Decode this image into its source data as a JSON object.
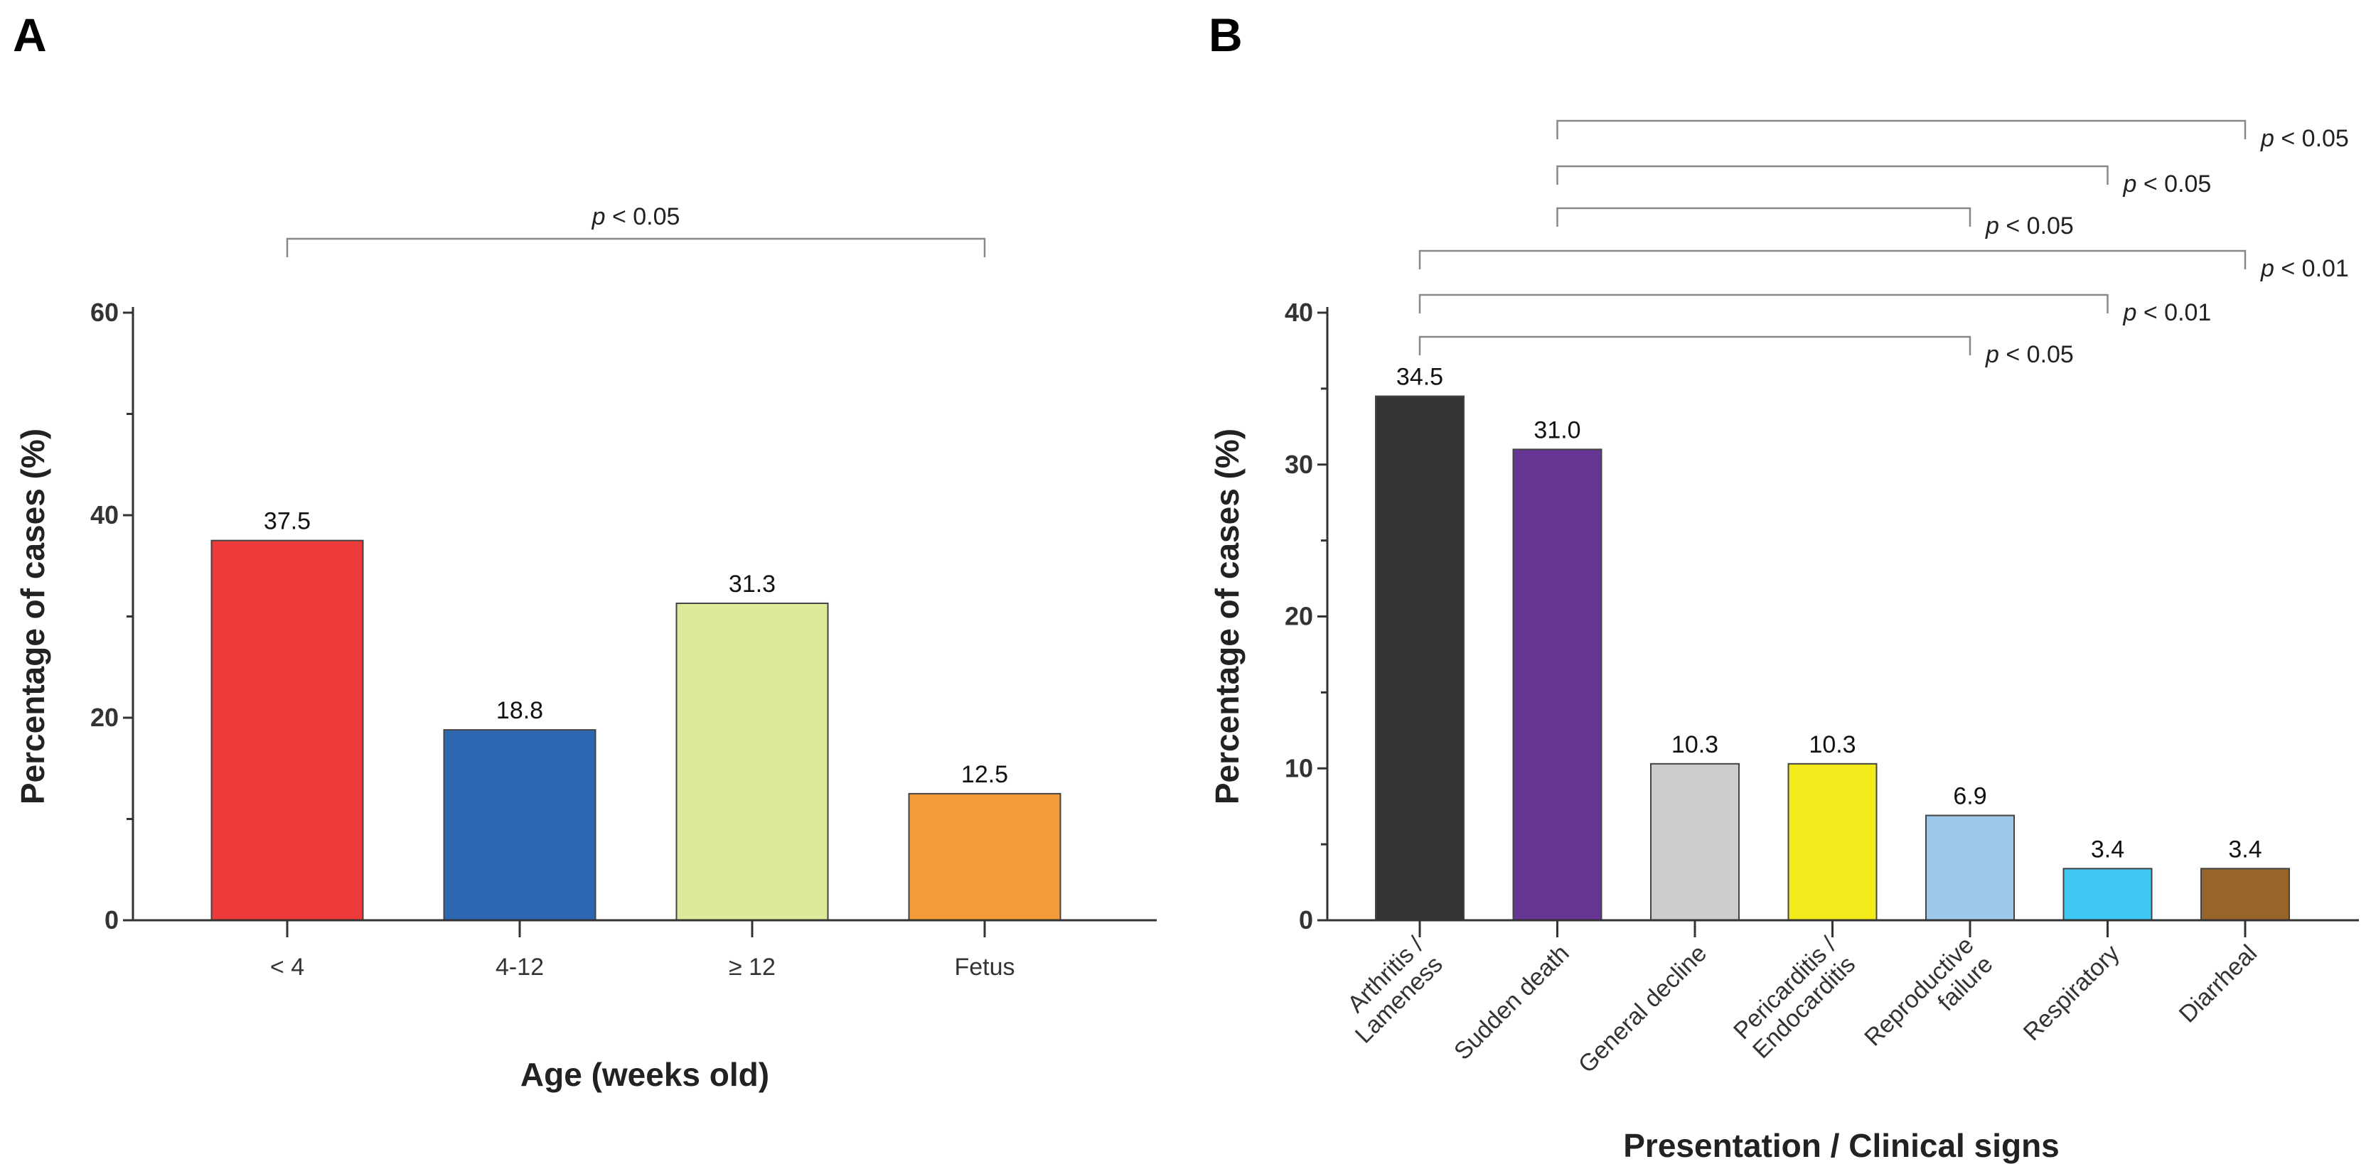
{
  "chart_data": [
    {
      "type": "bar",
      "panel": "A",
      "categories": [
        "< 4",
        "4-12",
        "≥ 12",
        "Fetus"
      ],
      "values": [
        37.5,
        18.8,
        31.3,
        12.5
      ],
      "value_labels": [
        "37.5",
        "18.8",
        "31.3",
        "12.5"
      ],
      "colors": [
        "#EE3A3B",
        "#2E67B1",
        "#DFE99B",
        "#F59A38"
      ],
      "xlabel": "Age (weeks old)",
      "ylabel": "Percentage of cases (%)",
      "ylim": [
        0,
        60
      ],
      "yticks": [
        0,
        20,
        40,
        60
      ],
      "grid": false,
      "significance": [
        {
          "from": 0,
          "to": 3,
          "label_p": "p",
          "label_rest": " < 0.05"
        }
      ]
    },
    {
      "type": "bar",
      "panel": "B",
      "categories": [
        [
          "Arthritis /",
          "Lameness"
        ],
        [
          "Sudden death"
        ],
        [
          "General decline"
        ],
        [
          "Pericarditis /",
          "Endocarditis"
        ],
        [
          "Reproductive",
          "failure"
        ],
        [
          "Respiratory"
        ],
        [
          "Diarrheal"
        ]
      ],
      "values": [
        34.5,
        31.0,
        10.3,
        10.3,
        6.9,
        3.4,
        3.4
      ],
      "value_labels": [
        "34.5",
        "31.0",
        "10.3",
        "10.3",
        "6.9",
        "3.4",
        "3.4"
      ],
      "colors": [
        "#333333",
        "#673594",
        "#CCCCCC",
        "#F2EA1B",
        "#9DC8EA",
        "#40C7F2",
        "#976529"
      ],
      "xlabel": "Presentation / Clinical signs",
      "ylabel": "Percentage of cases (%)",
      "ylim": [
        0,
        40
      ],
      "yticks": [
        0,
        10,
        20,
        30,
        40
      ],
      "grid": false,
      "significance": [
        {
          "from": 0,
          "to": 4,
          "label_p": "p",
          "label_rest": " < 0.05"
        },
        {
          "from": 0,
          "to": 5,
          "label_p": "p",
          "label_rest": " < 0.01"
        },
        {
          "from": 0,
          "to": 6,
          "label_p": "p",
          "label_rest": " < 0.01"
        },
        {
          "from": 1,
          "to": 4,
          "label_p": "p",
          "label_rest": " < 0.05"
        },
        {
          "from": 1,
          "to": 5,
          "label_p": "p",
          "label_rest": " < 0.05"
        },
        {
          "from": 1,
          "to": 6,
          "label_p": "p",
          "label_rest": " < 0.05"
        }
      ]
    }
  ]
}
